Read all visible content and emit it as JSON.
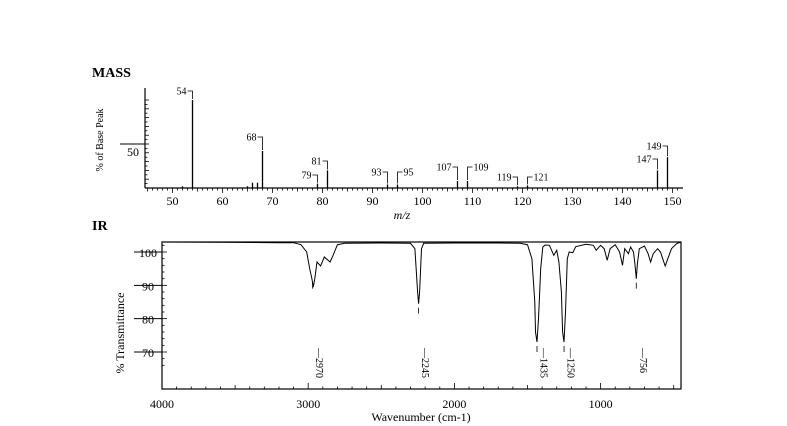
{
  "chart_data": [
    {
      "type": "bar",
      "title": "MASS",
      "xlabel": "m/z",
      "ylabel": "% of Base Peak",
      "xlim": [
        45,
        151
      ],
      "ylim": [
        0,
        100
      ],
      "xticks": [
        50,
        60,
        70,
        80,
        90,
        100,
        110,
        120,
        130,
        140,
        150
      ],
      "yticks": [
        50
      ],
      "peaks": [
        {
          "mz": 41,
          "intensity": 2,
          "label": ""
        },
        {
          "mz": 52,
          "intensity": 2,
          "label": ""
        },
        {
          "mz": 54,
          "intensity": 100,
          "label": "54"
        },
        {
          "mz": 65,
          "intensity": 2,
          "label": ""
        },
        {
          "mz": 66,
          "intensity": 6,
          "label": ""
        },
        {
          "mz": 67,
          "intensity": 6,
          "label": ""
        },
        {
          "mz": 68,
          "intensity": 42,
          "label": "68"
        },
        {
          "mz": 79,
          "intensity": 5,
          "label": "79"
        },
        {
          "mz": 81,
          "intensity": 20,
          "label": "81"
        },
        {
          "mz": 93,
          "intensity": 4,
          "label": "93"
        },
        {
          "mz": 95,
          "intensity": 4,
          "label": "95"
        },
        {
          "mz": 107,
          "intensity": 8,
          "label": "107"
        },
        {
          "mz": 109,
          "intensity": 8,
          "label": "109"
        },
        {
          "mz": 119,
          "intensity": 2,
          "label": "119"
        },
        {
          "mz": 121,
          "intensity": 3,
          "label": "121"
        },
        {
          "mz": 147,
          "intensity": 20,
          "label": "147"
        },
        {
          "mz": 149,
          "intensity": 35,
          "label": "149"
        }
      ]
    },
    {
      "type": "line",
      "title": "IR",
      "xlabel": "Wavenumber (cm-1)",
      "ylabel": "% Transmittance",
      "xlim": [
        4000,
        450
      ],
      "ylim": [
        62,
        104
      ],
      "xticks": [
        4000,
        3000,
        2000,
        1000
      ],
      "yticks": [
        100,
        90,
        80,
        70
      ],
      "points": [
        [
          4000,
          103
        ],
        [
          3600,
          102.9
        ],
        [
          3200,
          102.8
        ],
        [
          3100,
          102.8
        ],
        [
          3050,
          102.2
        ],
        [
          3010,
          100
        ],
        [
          2990,
          95
        ],
        [
          2975,
          92
        ],
        [
          2965,
          89.5
        ],
        [
          2955,
          92
        ],
        [
          2940,
          97
        ],
        [
          2915,
          95.8
        ],
        [
          2890,
          98.5
        ],
        [
          2850,
          97
        ],
        [
          2830,
          99
        ],
        [
          2800,
          102.2
        ],
        [
          2750,
          102.6
        ],
        [
          2500,
          102.7
        ],
        [
          2300,
          102.6
        ],
        [
          2270,
          101
        ],
        [
          2252,
          88
        ],
        [
          2245,
          84.5
        ],
        [
          2238,
          88
        ],
        [
          2225,
          101
        ],
        [
          2210,
          102.6
        ],
        [
          2000,
          102.7
        ],
        [
          1700,
          102.7
        ],
        [
          1550,
          102.6
        ],
        [
          1500,
          102.2
        ],
        [
          1470,
          98
        ],
        [
          1450,
          85
        ],
        [
          1445,
          76
        ],
        [
          1435,
          73
        ],
        [
          1425,
          80
        ],
        [
          1410,
          95
        ],
        [
          1395,
          101.5
        ],
        [
          1380,
          102.1
        ],
        [
          1350,
          102
        ],
        [
          1320,
          99
        ],
        [
          1300,
          100.5
        ],
        [
          1285,
          97
        ],
        [
          1268,
          88
        ],
        [
          1260,
          76
        ],
        [
          1250,
          73
        ],
        [
          1240,
          82
        ],
        [
          1228,
          98
        ],
        [
          1215,
          100
        ],
        [
          1190,
          99.8
        ],
        [
          1170,
          101.6
        ],
        [
          1100,
          102.3
        ],
        [
          1050,
          102
        ],
        [
          1030,
          100.5
        ],
        [
          1000,
          102
        ],
        [
          975,
          101
        ],
        [
          955,
          97.5
        ],
        [
          935,
          101
        ],
        [
          900,
          102.2
        ],
        [
          870,
          100
        ],
        [
          850,
          96
        ],
        [
          835,
          101
        ],
        [
          810,
          99.5
        ],
        [
          795,
          101.5
        ],
        [
          775,
          100
        ],
        [
          765,
          96.5
        ],
        [
          756,
          92
        ],
        [
          748,
          96.5
        ],
        [
          735,
          101
        ],
        [
          700,
          101.8
        ],
        [
          675,
          99.5
        ],
        [
          658,
          97
        ],
        [
          640,
          99.5
        ],
        [
          610,
          101
        ],
        [
          590,
          100
        ],
        [
          575,
          98
        ],
        [
          558,
          95.8
        ],
        [
          540,
          98
        ],
        [
          515,
          101
        ],
        [
          480,
          102.5
        ],
        [
          450,
          103
        ]
      ],
      "labels": [
        {
          "x": 2970,
          "label": "2970"
        },
        {
          "x": 2245,
          "label": "2245"
        },
        {
          "x": 1435,
          "label": "1435"
        },
        {
          "x": 1250,
          "label": "1250"
        },
        {
          "x": 756,
          "label": "756"
        }
      ]
    }
  ]
}
